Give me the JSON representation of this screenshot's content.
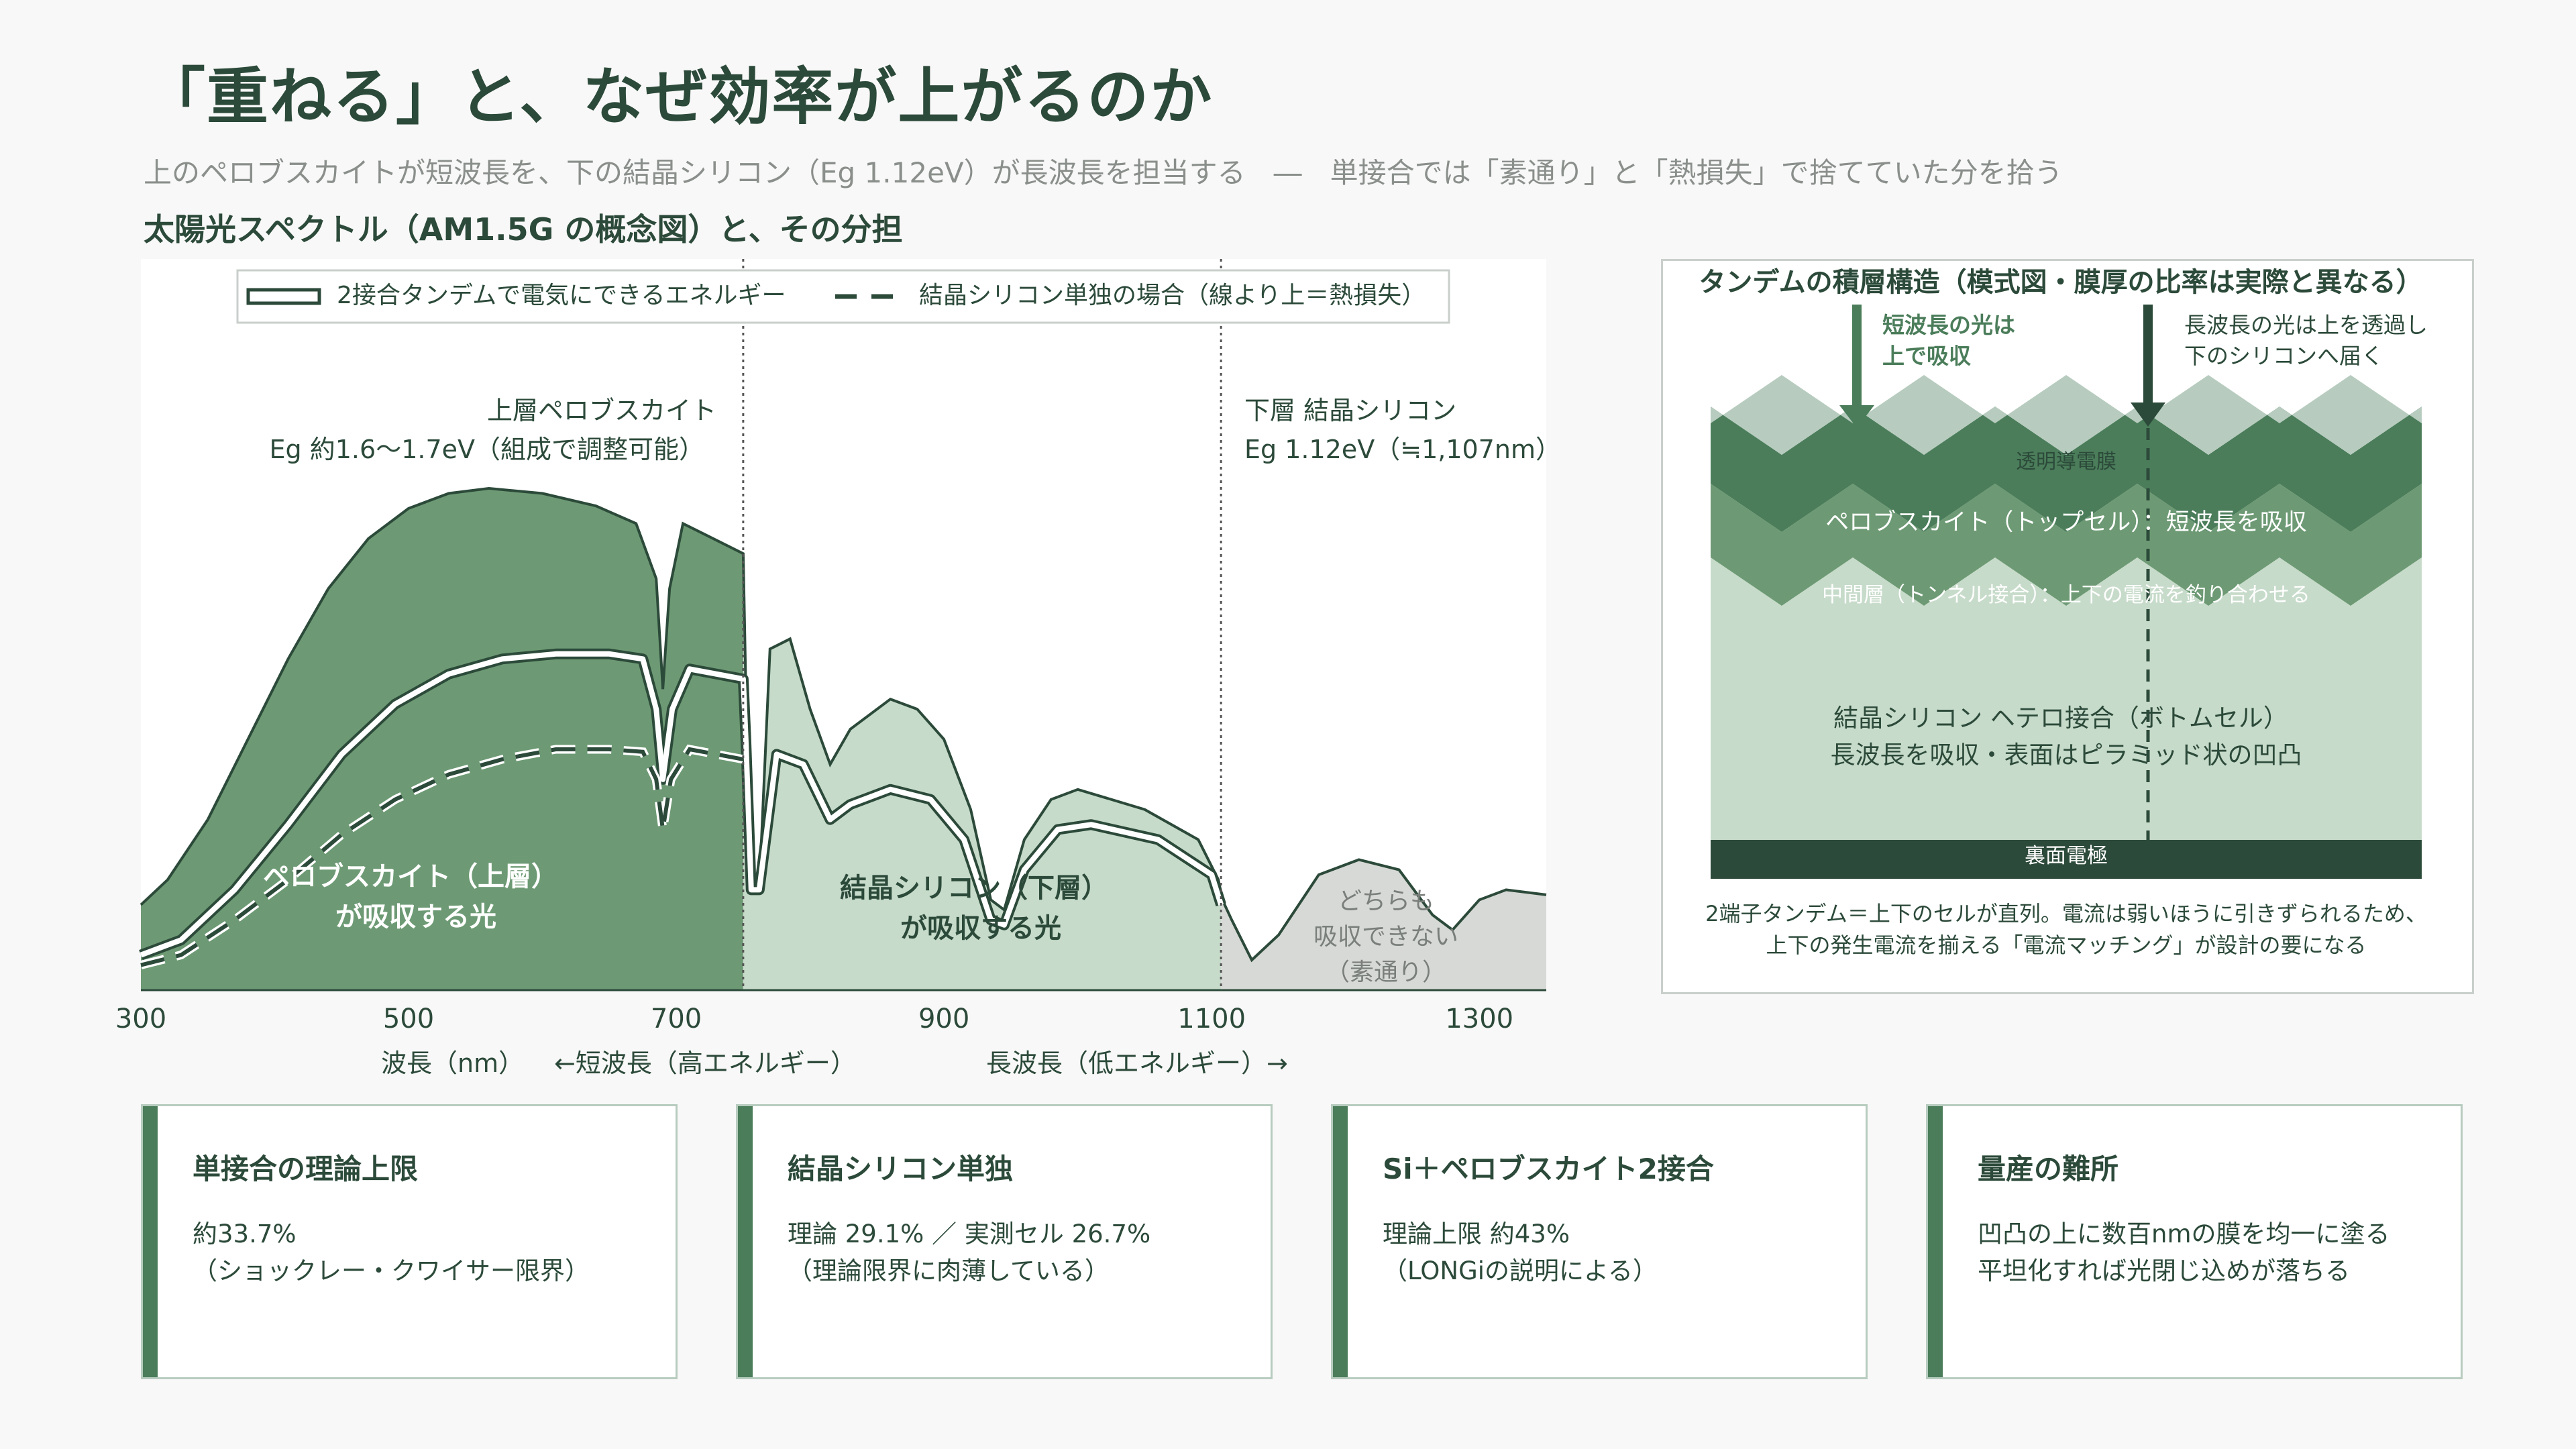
{
  "header": {
    "title": "「重ねる」と、なぜ効率が上がるのか",
    "subtitle": "上のペロブスカイトが短波長を、下の結晶シリコン（Eg 1.12eV）が長波長を担当する　―　単接合では「素通り」と「熱損失」で捨てていた分を拾う"
  },
  "chart_heading": "太陽光スペクトル（AM1.5G の概念図）と、その分担",
  "chart_data": {
    "type": "area",
    "xlim": [
      300,
      1350
    ],
    "xticks": [
      300,
      500,
      700,
      900,
      1100,
      1300
    ],
    "xlabel": "波長（nm）",
    "xlabel_short": "←短波長（高エネルギー）",
    "xlabel_long": "長波長（低エネルギー）→",
    "legend": {
      "tandem": "2接合タンデムで電気にできるエネルギー",
      "silicon_only": "結晶シリコン単独の場合（線より上＝熱損失）"
    },
    "boundaries": [
      {
        "x": 750,
        "label1": "上層ペロブスカイト",
        "label2": "Eg 約1.6〜1.7eV（組成で調整可能）"
      },
      {
        "x": 1107,
        "label1": "下層 結晶シリコン",
        "label2": "Eg 1.12eV（≒1,107nm）"
      }
    ],
    "regions": {
      "perovskite": [
        "ペロブスカイト（上層）",
        "が吸収する光"
      ],
      "silicon": [
        "結晶シリコン（下層）",
        "が吸収する光"
      ],
      "pass": [
        "どちらも",
        "吸収できない",
        "（素通り）"
      ]
    },
    "spectrum": [
      [
        300,
        0.17
      ],
      [
        320,
        0.22
      ],
      [
        350,
        0.34
      ],
      [
        380,
        0.5
      ],
      [
        410,
        0.66
      ],
      [
        440,
        0.8
      ],
      [
        470,
        0.9
      ],
      [
        500,
        0.96
      ],
      [
        530,
        0.99
      ],
      [
        560,
        1.0
      ],
      [
        600,
        0.99
      ],
      [
        640,
        0.965
      ],
      [
        670,
        0.93
      ],
      [
        685,
        0.82
      ],
      [
        690,
        0.6
      ],
      [
        695,
        0.8
      ],
      [
        705,
        0.93
      ],
      [
        720,
        0.91
      ],
      [
        750,
        0.87
      ],
      [
        752,
        0.6
      ],
      [
        757,
        0.22
      ],
      [
        762,
        0.2
      ],
      [
        770,
        0.68
      ],
      [
        785,
        0.7
      ],
      [
        800,
        0.56
      ],
      [
        815,
        0.45
      ],
      [
        830,
        0.52
      ],
      [
        860,
        0.58
      ],
      [
        880,
        0.56
      ],
      [
        900,
        0.5
      ],
      [
        920,
        0.36
      ],
      [
        935,
        0.18
      ],
      [
        945,
        0.16
      ],
      [
        960,
        0.3
      ],
      [
        980,
        0.38
      ],
      [
        1000,
        0.4
      ],
      [
        1050,
        0.36
      ],
      [
        1090,
        0.3
      ],
      [
        1105,
        0.22
      ],
      [
        1108,
        0.18
      ],
      [
        1115,
        0.14
      ],
      [
        1130,
        0.06
      ],
      [
        1150,
        0.11
      ],
      [
        1180,
        0.23
      ],
      [
        1210,
        0.26
      ],
      [
        1240,
        0.24
      ],
      [
        1265,
        0.15
      ],
      [
        1280,
        0.12
      ],
      [
        1300,
        0.18
      ],
      [
        1320,
        0.2
      ],
      [
        1350,
        0.19
      ]
    ],
    "tandem_curve": [
      [
        300,
        0.07
      ],
      [
        330,
        0.1
      ],
      [
        370,
        0.2
      ],
      [
        410,
        0.33
      ],
      [
        450,
        0.47
      ],
      [
        490,
        0.57
      ],
      [
        530,
        0.63
      ],
      [
        570,
        0.66
      ],
      [
        610,
        0.67
      ],
      [
        650,
        0.67
      ],
      [
        675,
        0.66
      ],
      [
        685,
        0.56
      ],
      [
        690,
        0.42
      ],
      [
        697,
        0.56
      ],
      [
        710,
        0.64
      ],
      [
        750,
        0.62
      ],
      [
        752,
        0.5
      ],
      [
        756,
        0.2
      ],
      [
        762,
        0.2
      ],
      [
        775,
        0.47
      ],
      [
        795,
        0.45
      ],
      [
        815,
        0.34
      ],
      [
        830,
        0.37
      ],
      [
        860,
        0.4
      ],
      [
        890,
        0.38
      ],
      [
        915,
        0.3
      ],
      [
        935,
        0.14
      ],
      [
        945,
        0.13
      ],
      [
        960,
        0.24
      ],
      [
        985,
        0.32
      ],
      [
        1010,
        0.33
      ],
      [
        1060,
        0.3
      ],
      [
        1100,
        0.23
      ],
      [
        1107,
        0.17
      ]
    ],
    "silicon_only_curve": [
      [
        300,
        0.05
      ],
      [
        330,
        0.07
      ],
      [
        370,
        0.14
      ],
      [
        410,
        0.22
      ],
      [
        450,
        0.31
      ],
      [
        490,
        0.38
      ],
      [
        530,
        0.43
      ],
      [
        570,
        0.46
      ],
      [
        610,
        0.48
      ],
      [
        650,
        0.48
      ],
      [
        675,
        0.475
      ],
      [
        685,
        0.42
      ],
      [
        690,
        0.32
      ],
      [
        696,
        0.42
      ],
      [
        710,
        0.48
      ],
      [
        750,
        0.46
      ]
    ]
  },
  "stack_panel": {
    "title": "タンデムの積層構造（模式図・膜厚の比率は実際と異なる）",
    "arrow_short": [
      "短波長の光は",
      "上で吸収"
    ],
    "arrow_long": [
      "長波長の光は上を透過し",
      "下のシリコンへ届く"
    ],
    "layers": {
      "tco": "透明導電膜",
      "perovskite": "ペロブスカイト（トップセル）：短波長を吸収",
      "interlayer": "中間層（トンネル接合）：上下の電流を釣り合わせる",
      "silicon": [
        "結晶シリコン ヘテロ接合（ボトムセル）",
        "長波長を吸収・表面はピラミッド状の凹凸"
      ],
      "back": "裏面電極"
    },
    "caption": [
      "2端子タンデム＝上下のセルが直列。電流は弱いほうに引きずられるため、",
      "上下の発生電流を揃える「電流マッチング」が設計の要になる"
    ]
  },
  "cards": [
    {
      "title": "単接合の理論上限",
      "line1": "約33.7%",
      "line2": "（ショックレー・クワイサー限界）"
    },
    {
      "title": "結晶シリコン単独",
      "line1": "理論 29.1% ／ 実測セル 26.7%",
      "line2": "（理論限界に肉薄している）"
    },
    {
      "title": "Si＋ペロブスカイト2接合",
      "line1": "理論上限 約43%",
      "line2": "（LONGiの説明による）"
    },
    {
      "title": "量産の難所",
      "line1": "凹凸の上に数百nmの膜を均一に塗る",
      "line2": "平坦化すれば光閉じ込めが落ちる"
    }
  ],
  "colors": {
    "dark_green": "#2c4a3a",
    "perovskite_fill": "#6d9a74",
    "silicon_fill": "#c7dbca",
    "pass_fill": "#d7d9d6",
    "accent": "#4b7d5a"
  }
}
